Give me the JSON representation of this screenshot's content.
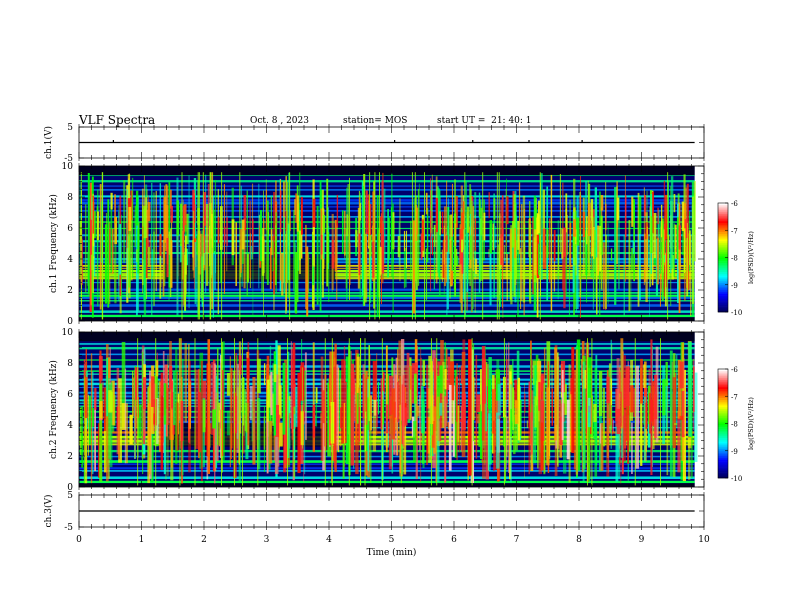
{
  "header": {
    "title": "VLF Spectra",
    "date": "Oct. 8 , 2023",
    "station": "station= MOS",
    "start_ut": "start UT =  21: 40: 1"
  },
  "chart_data": [
    {
      "type": "line",
      "panel": "ch.1 voltage",
      "ylabel": "ch.1(V)",
      "ylim": [
        -5,
        5
      ],
      "yticks": [
        "5",
        "-5"
      ],
      "xlim": [
        0,
        10
      ],
      "series": [
        {
          "x": [
            0,
            9.85
          ],
          "y": [
            0,
            0
          ]
        }
      ]
    },
    {
      "type": "heatmap",
      "panel": "ch.1 spectrogram",
      "ylabel": "ch.1 Frequency (kHz)",
      "ylim": [
        0,
        10
      ],
      "yticks": [
        "0",
        "2",
        "4",
        "6",
        "8",
        "10"
      ],
      "xlim": [
        0,
        10
      ],
      "data_end_min": 9.85,
      "colorbar": {
        "label": "log(PSD)(V²/Hz)",
        "range": [
          -10,
          -6
        ],
        "ticks": [
          "-6",
          "-7",
          "-8",
          "-9",
          "-10"
        ]
      }
    },
    {
      "type": "heatmap",
      "panel": "ch.2 spectrogram",
      "ylabel": "ch.2 Frequency (kHz)",
      "ylim": [
        0,
        10
      ],
      "yticks": [
        "0",
        "2",
        "4",
        "6",
        "8",
        "10"
      ],
      "xlim": [
        0,
        10
      ],
      "data_end_min": 9.85,
      "colorbar": {
        "label": "log(PSD)(V²/Hz)",
        "range": [
          -10,
          -6
        ],
        "ticks": [
          "-6",
          "-7",
          "-8",
          "-9",
          "-10"
        ]
      }
    },
    {
      "type": "line",
      "panel": "ch.3 voltage",
      "ylabel": "ch.3(V)",
      "ylim": [
        -5,
        5
      ],
      "yticks": [
        "5",
        "-5"
      ],
      "xlim": [
        0,
        10
      ],
      "xlabel": "Time (min)",
      "xticks": [
        "0",
        "1",
        "2",
        "3",
        "4",
        "5",
        "6",
        "7",
        "8",
        "9",
        "10"
      ],
      "series": [
        {
          "x": [
            0,
            9.85
          ],
          "y": [
            0,
            0
          ]
        }
      ]
    }
  ],
  "colors": {
    "colormap": [
      "#000050",
      "#0000ff",
      "#00ffff",
      "#00ff00",
      "#ffff00",
      "#ff0000",
      "#ffffff"
    ],
    "trace": "#000000"
  }
}
